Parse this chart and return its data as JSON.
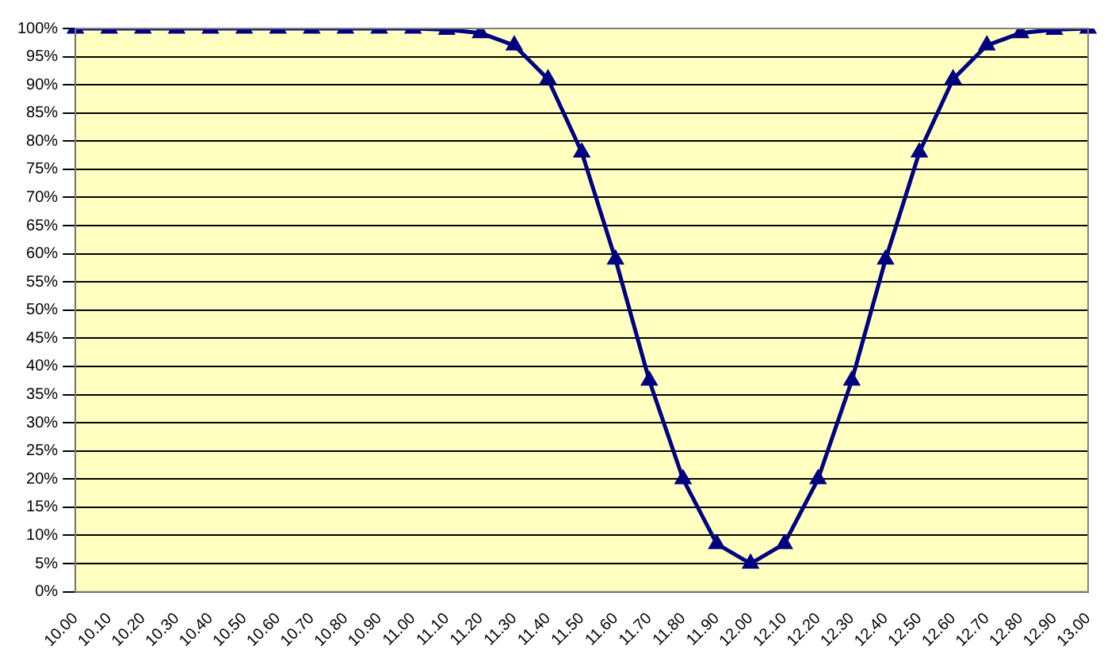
{
  "chart_data": {
    "type": "line",
    "categories": [
      "10.00",
      "10.10",
      "10.20",
      "10.30",
      "10.40",
      "10.50",
      "10.60",
      "10.70",
      "10.80",
      "10.90",
      "11.00",
      "11.10",
      "11.20",
      "11.30",
      "11.40",
      "11.50",
      "11.60",
      "11.70",
      "11.80",
      "11.90",
      "12.00",
      "12.10",
      "12.20",
      "12.30",
      "12.40",
      "12.50",
      "12.60",
      "12.70",
      "12.80",
      "12.90",
      "13.00"
    ],
    "series": [
      {
        "color": "#000080",
        "values": [
          100,
          100,
          100,
          100,
          100,
          100,
          100,
          100,
          100,
          100,
          100,
          99.8,
          99.2,
          97,
          91,
          78,
          59,
          37.5,
          20,
          8.5,
          5,
          8.5,
          20,
          37.5,
          59,
          78,
          91,
          97,
          99.2,
          99.8,
          100
        ]
      }
    ],
    "ylim": [
      0,
      100
    ],
    "yticks": [
      {
        "value": 0,
        "label": "0%"
      },
      {
        "value": 5,
        "label": "5%"
      },
      {
        "value": 10,
        "label": "10%"
      },
      {
        "value": 15,
        "label": "15%"
      },
      {
        "value": 20,
        "label": "20%"
      },
      {
        "value": 25,
        "label": "25%"
      },
      {
        "value": 30,
        "label": "30%"
      },
      {
        "value": 35,
        "label": "35%"
      },
      {
        "value": 40,
        "label": "40%"
      },
      {
        "value": 45,
        "label": "45%"
      },
      {
        "value": 50,
        "label": "50%"
      },
      {
        "value": 55,
        "label": "55%"
      },
      {
        "value": 60,
        "label": "60%"
      },
      {
        "value": 65,
        "label": "65%"
      },
      {
        "value": 70,
        "label": "70%"
      },
      {
        "value": 75,
        "label": "75%"
      },
      {
        "value": 80,
        "label": "80%"
      },
      {
        "value": 85,
        "label": "85%"
      },
      {
        "value": 90,
        "label": "90%"
      },
      {
        "value": 95,
        "label": "95%"
      },
      {
        "value": 100,
        "label": "100%"
      }
    ],
    "grid": "y",
    "legend": false,
    "marker": "triangle",
    "line_style": "solid"
  }
}
